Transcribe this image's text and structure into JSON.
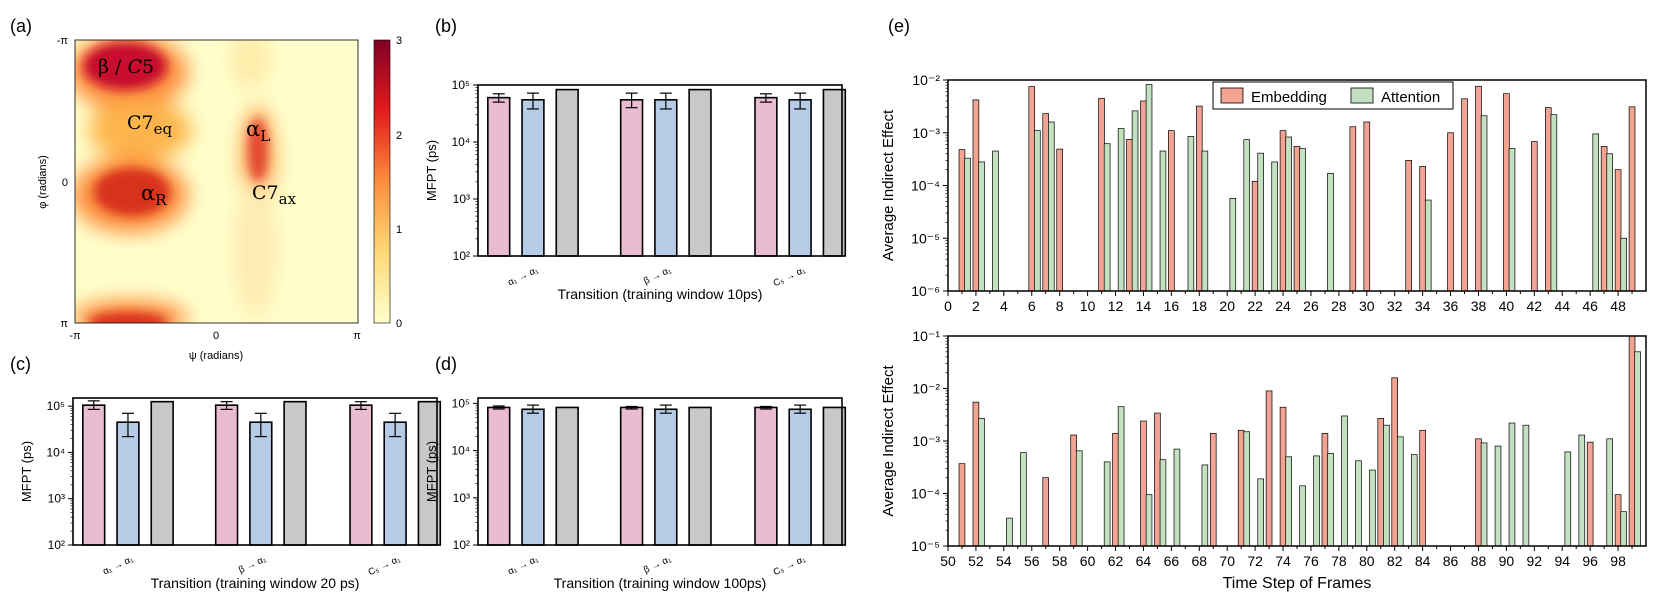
{
  "panel_labels": [
    "(a)",
    "(b)",
    "(c)",
    "(d)",
    "(e)"
  ],
  "colors": {
    "pink": "#eabcd2",
    "blue": "#b6cbe6",
    "gray": "#c8c8c8",
    "embedding": "#f2a392",
    "attention": "#c3e0c1"
  },
  "chart_data": [
    {
      "panel": "(a)",
      "type": "heatmap",
      "title": "",
      "xlabel": "ψ (radians)",
      "ylabel": "φ (radians)",
      "x_ticks": [
        "-π",
        "0",
        "π"
      ],
      "y_ticks": [
        "-π",
        "0",
        "π"
      ],
      "colorbar": {
        "ticks": [
          "0",
          "1",
          "2",
          "3"
        ],
        "range": [
          0,
          3
        ]
      },
      "annotations": [
        {
          "html": "β / <tspan font-style='italic'>C</tspan>5"
        },
        {
          "main": "C7",
          "sub": "eq"
        },
        {
          "main": "α",
          "sub": "L"
        },
        {
          "main": "α",
          "sub": "R"
        },
        {
          "main": "C7",
          "sub": "ax"
        }
      ]
    },
    {
      "panel": "(b)",
      "type": "bar",
      "xlabel": "Transition (training window 10ps)",
      "ylabel": "MFPT (ps)",
      "yscale": "log",
      "ylim": [
        100,
        100000
      ],
      "y_ticks": [
        "10²",
        "10³",
        "10⁴",
        "10⁵"
      ],
      "categories": [
        "α₁ → α₁",
        "β → α₁",
        "C₅ → α₁"
      ],
      "series": [
        {
          "values": [
            60000,
            55000,
            60000
          ],
          "err": [
            [
              50000,
              70000
            ],
            [
              40000,
              72000
            ],
            [
              50000,
              70000
            ]
          ]
        },
        {
          "values": [
            55000,
            55000,
            55000
          ],
          "err": [
            [
              38000,
              72000
            ],
            [
              38000,
              72000
            ],
            [
              38000,
              72000
            ]
          ]
        },
        {
          "values": [
            83000,
            83000,
            83000
          ],
          "err": [
            null,
            null,
            null
          ]
        }
      ]
    },
    {
      "panel": "(c)",
      "type": "bar",
      "xlabel": "Transition (training window 20 ps)",
      "ylabel": "MFPT (ps)",
      "yscale": "log",
      "ylim": [
        100,
        150000
      ],
      "y_ticks": [
        "10²",
        "10³",
        "10⁴",
        "10⁵"
      ],
      "categories": [
        "α₁ → α₁",
        "β → α₁",
        "C₅ → α₁"
      ],
      "series": [
        {
          "values": [
            105000,
            105000,
            105000
          ],
          "err": [
            [
              85000,
              130000
            ],
            [
              85000,
              125000
            ],
            [
              85000,
              125000
            ]
          ]
        },
        {
          "values": [
            45000,
            45000,
            45000
          ],
          "err": [
            [
              22000,
              70000
            ],
            [
              22000,
              70000
            ],
            [
              22000,
              70000
            ]
          ]
        },
        {
          "values": [
            125000,
            125000,
            125000
          ],
          "err": [
            null,
            null,
            null
          ]
        }
      ]
    },
    {
      "panel": "(d)",
      "type": "bar",
      "xlabel": "Transition (training window 100ps)",
      "ylabel": "MFPT (ps)",
      "yscale": "log",
      "ylim": [
        100,
        130000
      ],
      "y_ticks": [
        "10²",
        "10³",
        "10⁴",
        "10⁵"
      ],
      "categories": [
        "α₁ → α₁",
        "β → α₁",
        "C₅ → α₁"
      ],
      "series": [
        {
          "values": [
            82000,
            82000,
            82000
          ],
          "err": [
            [
              76000,
              88000
            ],
            [
              76000,
              86000
            ],
            [
              76000,
              86000
            ]
          ]
        },
        {
          "values": [
            75000,
            75000,
            75000
          ],
          "err": [
            [
              62000,
              92000
            ],
            [
              62000,
              92000
            ],
            [
              62000,
              92000
            ]
          ]
        },
        {
          "values": [
            82000,
            82000,
            82000
          ],
          "err": [
            null,
            null,
            null
          ]
        }
      ]
    },
    {
      "panel": "(e) top",
      "type": "bar",
      "ylabel": "Average Indirect Effect",
      "yscale": "log",
      "ylim": [
        1e-06,
        0.01
      ],
      "y_ticks": [
        "10⁻⁶",
        "10⁻⁵",
        "10⁻⁴",
        "10⁻³",
        "10⁻²"
      ],
      "x_range": [
        0,
        50
      ],
      "x_ticks": [
        "0",
        "2",
        "4",
        "6",
        "8",
        "10",
        "12",
        "14",
        "16",
        "18",
        "20",
        "22",
        "24",
        "26",
        "28",
        "30",
        "32",
        "34",
        "36",
        "38",
        "40",
        "42",
        "44",
        "46",
        "48"
      ],
      "legend": {
        "position": "top",
        "entries": [
          "Embedding",
          "Attention"
        ]
      },
      "series": [
        {
          "name": "Embedding",
          "points": [
            [
              1,
              0.00048
            ],
            [
              2,
              0.0042
            ],
            [
              6,
              0.0075
            ],
            [
              7,
              0.0023
            ],
            [
              8,
              0.00049
            ],
            [
              11,
              0.0045
            ],
            [
              13,
              0.00075
            ],
            [
              14,
              0.004
            ],
            [
              16,
              0.0011
            ],
            [
              18,
              0.0032
            ],
            [
              22,
              0.00012
            ],
            [
              24,
              0.0011
            ],
            [
              25,
              0.00055
            ],
            [
              29,
              0.0013
            ],
            [
              30,
              0.0016
            ],
            [
              33,
              0.0003
            ],
            [
              34,
              0.00023
            ],
            [
              36,
              0.001
            ],
            [
              37,
              0.0044
            ],
            [
              38,
              0.0076
            ],
            [
              40,
              0.0055
            ],
            [
              42,
              0.00068
            ],
            [
              43,
              0.003
            ],
            [
              47,
              0.00055
            ],
            [
              48,
              0.0002
            ],
            [
              49,
              0.0031
            ]
          ]
        },
        {
          "name": "Attention",
          "points": [
            [
              1.4,
              0.00033
            ],
            [
              2.4,
              0.00028
            ],
            [
              3.4,
              0.00045
            ],
            [
              6.4,
              0.0011
            ],
            [
              7.4,
              0.0016
            ],
            [
              11.4,
              0.00062
            ],
            [
              12.4,
              0.0012
            ],
            [
              13.4,
              0.0026
            ],
            [
              14.4,
              0.0082
            ],
            [
              15.4,
              0.00045
            ],
            [
              17.4,
              0.00085
            ],
            [
              18.4,
              0.00045
            ],
            [
              20.4,
              5.7e-05
            ],
            [
              21.4,
              0.00074
            ],
            [
              22.4,
              0.00041
            ],
            [
              23.4,
              0.00028
            ],
            [
              24.4,
              0.00083
            ],
            [
              25.4,
              0.0005
            ],
            [
              27.4,
              0.00017
            ],
            [
              34.4,
              5.3e-05
            ],
            [
              38.4,
              0.0021
            ],
            [
              40.4,
              0.0005
            ],
            [
              43.4,
              0.0022
            ],
            [
              46.4,
              0.00095
            ],
            [
              47.4,
              0.0004
            ],
            [
              48.4,
              1e-05
            ]
          ]
        }
      ]
    },
    {
      "panel": "(e) bottom",
      "type": "bar",
      "xlabel": "Time Step of Frames",
      "ylabel": "Average Indirect Effect",
      "yscale": "log",
      "ylim": [
        1e-05,
        0.1
      ],
      "y_ticks": [
        "10⁻⁵",
        "10⁻⁴",
        "10⁻³",
        "10⁻²",
        "10⁻¹"
      ],
      "x_range": [
        50,
        100
      ],
      "x_ticks": [
        "50",
        "52",
        "54",
        "56",
        "58",
        "60",
        "62",
        "64",
        "66",
        "68",
        "70",
        "72",
        "74",
        "76",
        "78",
        "80",
        "82",
        "84",
        "86",
        "88",
        "90",
        "92",
        "94",
        "96",
        "98"
      ],
      "series": [
        {
          "name": "Embedding",
          "points": [
            [
              51,
              0.00037
            ],
            [
              52,
              0.0055
            ],
            [
              57,
              0.0002
            ],
            [
              59,
              0.0013
            ],
            [
              62,
              0.0014
            ],
            [
              64,
              0.0024
            ],
            [
              65,
              0.0034
            ],
            [
              69,
              0.0014
            ],
            [
              71,
              0.0016
            ],
            [
              73,
              0.009
            ],
            [
              74,
              0.0044
            ],
            [
              77,
              0.0014
            ],
            [
              81,
              0.0027
            ],
            [
              82,
              0.016
            ],
            [
              84,
              0.0016
            ],
            [
              88,
              0.0011
            ],
            [
              96,
              0.00095
            ],
            [
              98,
              9.5e-05
            ],
            [
              99,
              0.1
            ]
          ]
        },
        {
          "name": "Attention",
          "points": [
            [
              52.4,
              0.0027
            ],
            [
              54.4,
              3.4e-05
            ],
            [
              55.4,
              0.0006
            ],
            [
              59.4,
              0.00065
            ],
            [
              61.4,
              0.0004
            ],
            [
              62.4,
              0.0045
            ],
            [
              64.4,
              9.5e-05
            ],
            [
              65.4,
              0.00044
            ],
            [
              66.4,
              0.0007
            ],
            [
              68.4,
              0.00035
            ],
            [
              71.4,
              0.0015
            ],
            [
              72.4,
              0.00019
            ],
            [
              74.4,
              0.0005
            ],
            [
              75.4,
              0.00014
            ],
            [
              76.4,
              0.00052
            ],
            [
              77.4,
              0.00058
            ],
            [
              78.4,
              0.003
            ],
            [
              79.4,
              0.00042
            ],
            [
              80.4,
              0.00028
            ],
            [
              81.4,
              0.002
            ],
            [
              82.4,
              0.0012
            ],
            [
              83.4,
              0.00055
            ],
            [
              88.4,
              0.00092
            ],
            [
              89.4,
              0.0008
            ],
            [
              90.4,
              0.0022
            ],
            [
              91.4,
              0.002
            ],
            [
              94.4,
              0.00062
            ],
            [
              95.4,
              0.0013
            ],
            [
              97.4,
              0.0011
            ],
            [
              98.4,
              4.5e-05
            ],
            [
              99.4,
              0.05
            ]
          ]
        }
      ]
    }
  ]
}
